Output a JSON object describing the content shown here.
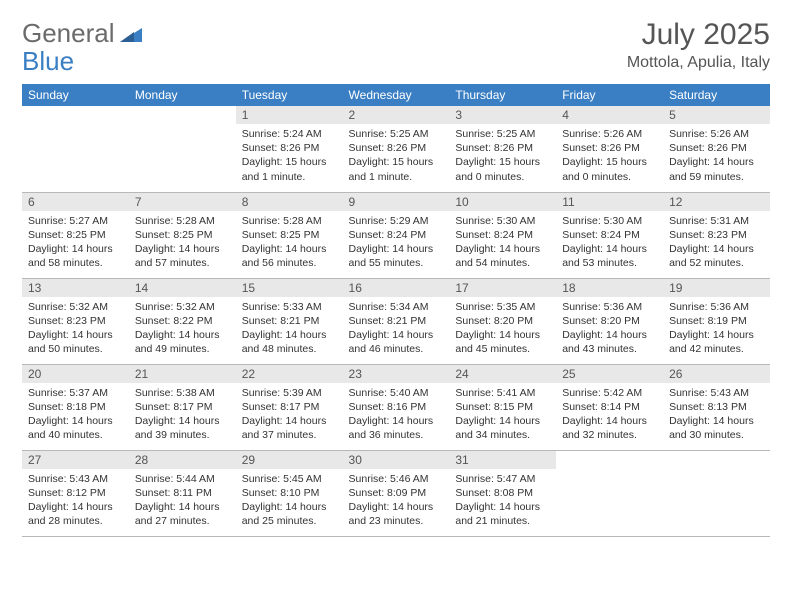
{
  "logo": {
    "part1": "General",
    "part2": "Blue"
  },
  "title": "July 2025",
  "location": "Mottola, Apulia, Italy",
  "colors": {
    "header_bg": "#3a7fc4",
    "header_fg": "#ffffff",
    "daynum_bg": "#e8e8e8",
    "border": "#b8b8b8"
  },
  "weekdays": [
    "Sunday",
    "Monday",
    "Tuesday",
    "Wednesday",
    "Thursday",
    "Friday",
    "Saturday"
  ],
  "weeks": [
    [
      null,
      null,
      {
        "n": "1",
        "sr": "Sunrise: 5:24 AM",
        "ss": "Sunset: 8:26 PM",
        "dl": "Daylight: 15 hours and 1 minute."
      },
      {
        "n": "2",
        "sr": "Sunrise: 5:25 AM",
        "ss": "Sunset: 8:26 PM",
        "dl": "Daylight: 15 hours and 1 minute."
      },
      {
        "n": "3",
        "sr": "Sunrise: 5:25 AM",
        "ss": "Sunset: 8:26 PM",
        "dl": "Daylight: 15 hours and 0 minutes."
      },
      {
        "n": "4",
        "sr": "Sunrise: 5:26 AM",
        "ss": "Sunset: 8:26 PM",
        "dl": "Daylight: 15 hours and 0 minutes."
      },
      {
        "n": "5",
        "sr": "Sunrise: 5:26 AM",
        "ss": "Sunset: 8:26 PM",
        "dl": "Daylight: 14 hours and 59 minutes."
      }
    ],
    [
      {
        "n": "6",
        "sr": "Sunrise: 5:27 AM",
        "ss": "Sunset: 8:25 PM",
        "dl": "Daylight: 14 hours and 58 minutes."
      },
      {
        "n": "7",
        "sr": "Sunrise: 5:28 AM",
        "ss": "Sunset: 8:25 PM",
        "dl": "Daylight: 14 hours and 57 minutes."
      },
      {
        "n": "8",
        "sr": "Sunrise: 5:28 AM",
        "ss": "Sunset: 8:25 PM",
        "dl": "Daylight: 14 hours and 56 minutes."
      },
      {
        "n": "9",
        "sr": "Sunrise: 5:29 AM",
        "ss": "Sunset: 8:24 PM",
        "dl": "Daylight: 14 hours and 55 minutes."
      },
      {
        "n": "10",
        "sr": "Sunrise: 5:30 AM",
        "ss": "Sunset: 8:24 PM",
        "dl": "Daylight: 14 hours and 54 minutes."
      },
      {
        "n": "11",
        "sr": "Sunrise: 5:30 AM",
        "ss": "Sunset: 8:24 PM",
        "dl": "Daylight: 14 hours and 53 minutes."
      },
      {
        "n": "12",
        "sr": "Sunrise: 5:31 AM",
        "ss": "Sunset: 8:23 PM",
        "dl": "Daylight: 14 hours and 52 minutes."
      }
    ],
    [
      {
        "n": "13",
        "sr": "Sunrise: 5:32 AM",
        "ss": "Sunset: 8:23 PM",
        "dl": "Daylight: 14 hours and 50 minutes."
      },
      {
        "n": "14",
        "sr": "Sunrise: 5:32 AM",
        "ss": "Sunset: 8:22 PM",
        "dl": "Daylight: 14 hours and 49 minutes."
      },
      {
        "n": "15",
        "sr": "Sunrise: 5:33 AM",
        "ss": "Sunset: 8:21 PM",
        "dl": "Daylight: 14 hours and 48 minutes."
      },
      {
        "n": "16",
        "sr": "Sunrise: 5:34 AM",
        "ss": "Sunset: 8:21 PM",
        "dl": "Daylight: 14 hours and 46 minutes."
      },
      {
        "n": "17",
        "sr": "Sunrise: 5:35 AM",
        "ss": "Sunset: 8:20 PM",
        "dl": "Daylight: 14 hours and 45 minutes."
      },
      {
        "n": "18",
        "sr": "Sunrise: 5:36 AM",
        "ss": "Sunset: 8:20 PM",
        "dl": "Daylight: 14 hours and 43 minutes."
      },
      {
        "n": "19",
        "sr": "Sunrise: 5:36 AM",
        "ss": "Sunset: 8:19 PM",
        "dl": "Daylight: 14 hours and 42 minutes."
      }
    ],
    [
      {
        "n": "20",
        "sr": "Sunrise: 5:37 AM",
        "ss": "Sunset: 8:18 PM",
        "dl": "Daylight: 14 hours and 40 minutes."
      },
      {
        "n": "21",
        "sr": "Sunrise: 5:38 AM",
        "ss": "Sunset: 8:17 PM",
        "dl": "Daylight: 14 hours and 39 minutes."
      },
      {
        "n": "22",
        "sr": "Sunrise: 5:39 AM",
        "ss": "Sunset: 8:17 PM",
        "dl": "Daylight: 14 hours and 37 minutes."
      },
      {
        "n": "23",
        "sr": "Sunrise: 5:40 AM",
        "ss": "Sunset: 8:16 PM",
        "dl": "Daylight: 14 hours and 36 minutes."
      },
      {
        "n": "24",
        "sr": "Sunrise: 5:41 AM",
        "ss": "Sunset: 8:15 PM",
        "dl": "Daylight: 14 hours and 34 minutes."
      },
      {
        "n": "25",
        "sr": "Sunrise: 5:42 AM",
        "ss": "Sunset: 8:14 PM",
        "dl": "Daylight: 14 hours and 32 minutes."
      },
      {
        "n": "26",
        "sr": "Sunrise: 5:43 AM",
        "ss": "Sunset: 8:13 PM",
        "dl": "Daylight: 14 hours and 30 minutes."
      }
    ],
    [
      {
        "n": "27",
        "sr": "Sunrise: 5:43 AM",
        "ss": "Sunset: 8:12 PM",
        "dl": "Daylight: 14 hours and 28 minutes."
      },
      {
        "n": "28",
        "sr": "Sunrise: 5:44 AM",
        "ss": "Sunset: 8:11 PM",
        "dl": "Daylight: 14 hours and 27 minutes."
      },
      {
        "n": "29",
        "sr": "Sunrise: 5:45 AM",
        "ss": "Sunset: 8:10 PM",
        "dl": "Daylight: 14 hours and 25 minutes."
      },
      {
        "n": "30",
        "sr": "Sunrise: 5:46 AM",
        "ss": "Sunset: 8:09 PM",
        "dl": "Daylight: 14 hours and 23 minutes."
      },
      {
        "n": "31",
        "sr": "Sunrise: 5:47 AM",
        "ss": "Sunset: 8:08 PM",
        "dl": "Daylight: 14 hours and 21 minutes."
      },
      null,
      null
    ]
  ]
}
